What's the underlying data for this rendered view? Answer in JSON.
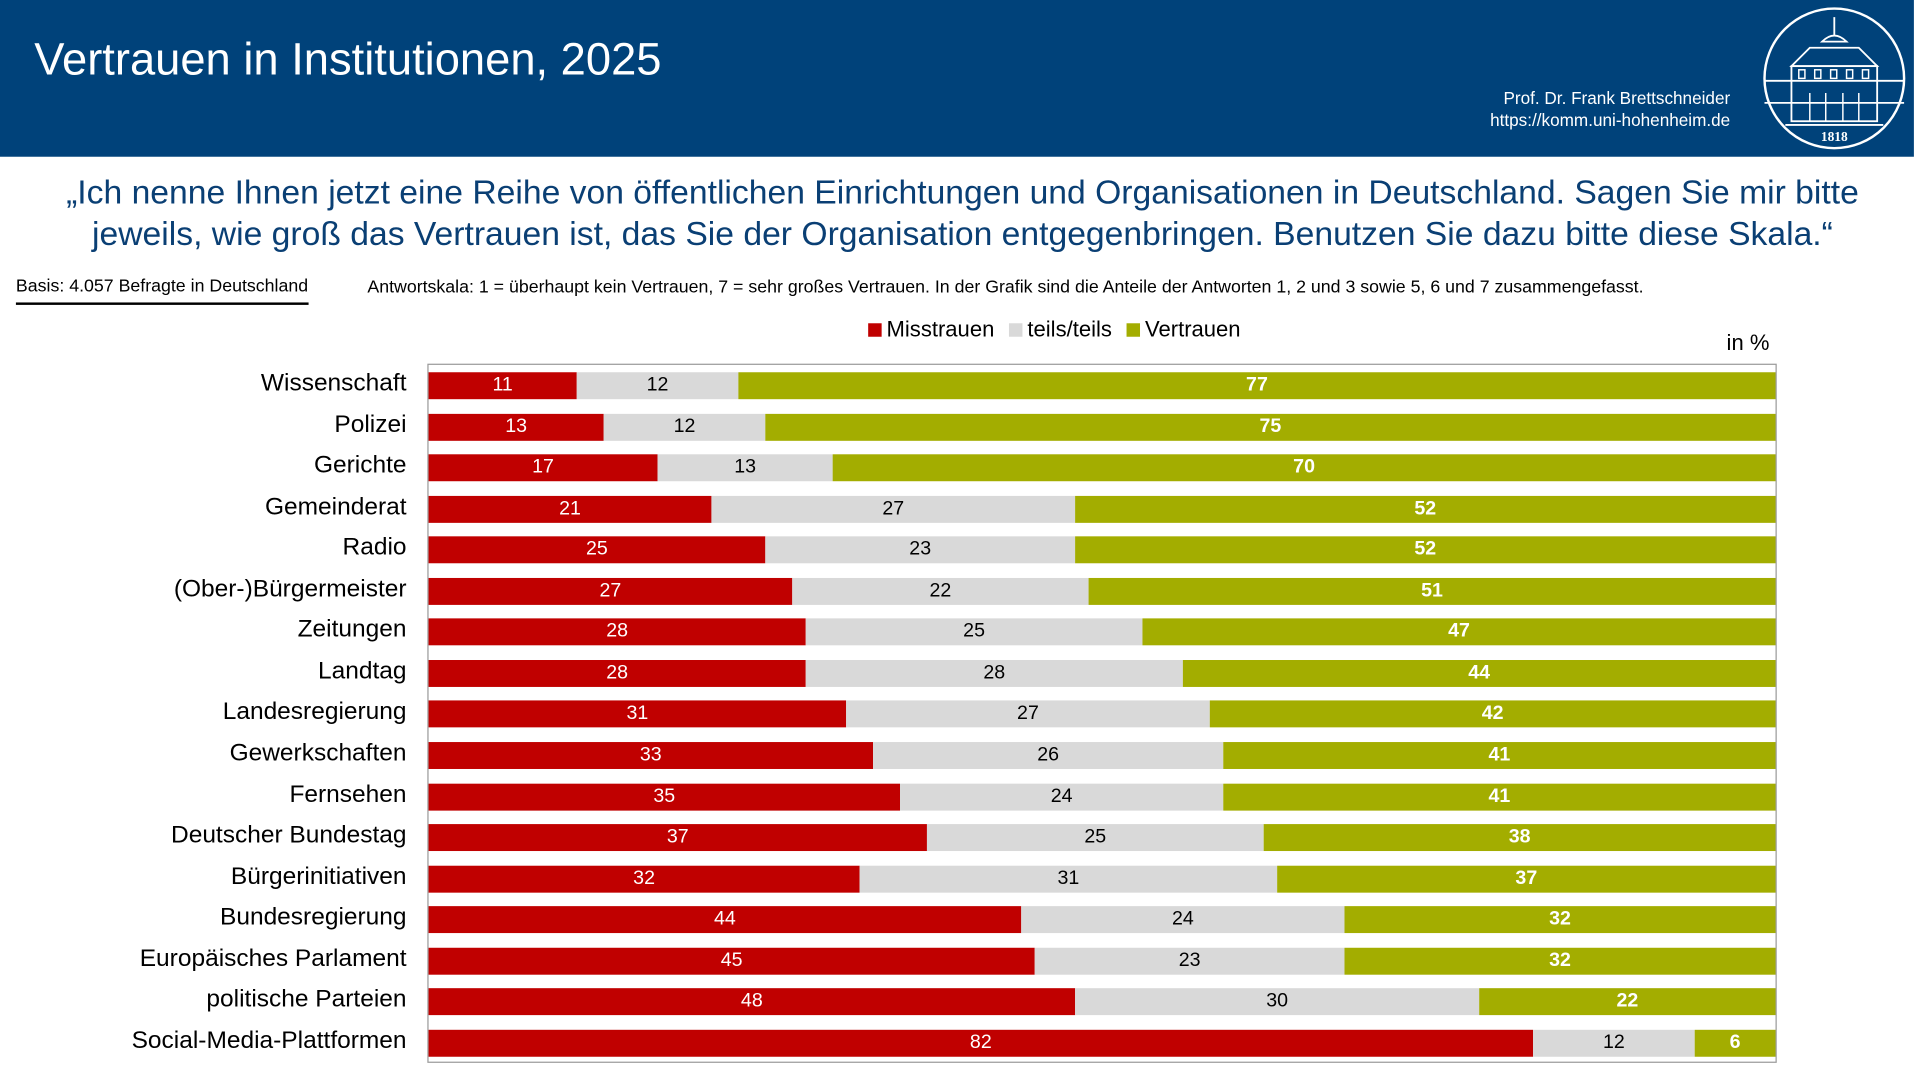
{
  "header": {
    "title": "Vertrauen in Institutionen, 2025",
    "author": "Prof. Dr. Frank Brettschneider",
    "url": "https://komm.uni-hohenheim.de",
    "logo_text": "1818"
  },
  "question": "„Ich nenne Ihnen jetzt eine Reihe von öffentlichen Einrichtungen und Organisationen in Deutschland. Sagen Sie mir bitte jeweils, wie groß das Vertrauen ist, das Sie der Organisation entgegenbringen. Benutzen Sie dazu bitte diese Skala.“",
  "basis": "Basis: 4.057 Befragte in Deutschland",
  "scale_note": "Antwortskala: 1 = überhaupt kein Vertrauen, 7 = sehr großes Vertrauen. In der Grafik sind die Anteile der Antworten 1, 2 und 3 sowie 5, 6 und 7 zusammengefasst.",
  "chart_data": {
    "type": "bar",
    "orientation": "horizontal-stacked-100",
    "unit": "in %",
    "legend_position": "top",
    "categories": [
      "Wissenschaft",
      "Polizei",
      "Gerichte",
      "Gemeinderat",
      "Radio",
      "(Ober-)Bürgermeister",
      "Zeitungen",
      "Landtag",
      "Landesregierung",
      "Gewerkschaften",
      "Fernsehen",
      "Deutscher Bundestag",
      "Bürgerinitiativen",
      "Bundesregierung",
      "Europäisches Parlament",
      "politische Parteien",
      "Social-Media-Plattformen"
    ],
    "series": [
      {
        "name": "Misstrauen",
        "color": "#c00000",
        "values": [
          11,
          13,
          17,
          21,
          25,
          27,
          28,
          28,
          31,
          33,
          35,
          37,
          32,
          44,
          45,
          48,
          82
        ]
      },
      {
        "name": "teils/teils",
        "color": "#d9d9d9",
        "values": [
          12,
          12,
          13,
          27,
          23,
          22,
          25,
          28,
          27,
          26,
          24,
          25,
          31,
          24,
          23,
          30,
          12
        ]
      },
      {
        "name": "Vertrauen",
        "color": "#a3ad00",
        "values": [
          77,
          75,
          70,
          52,
          52,
          51,
          47,
          44,
          42,
          41,
          41,
          38,
          37,
          32,
          32,
          22,
          6
        ]
      }
    ]
  }
}
